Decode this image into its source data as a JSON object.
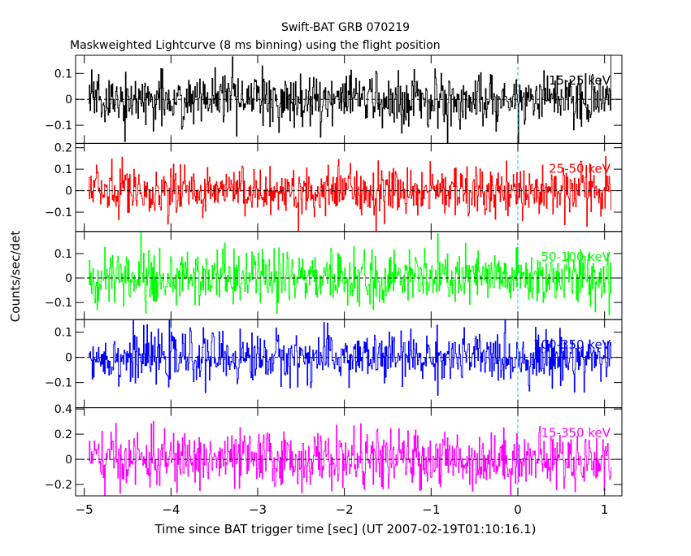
{
  "chart_data": {
    "type": "line",
    "title": "Swift-BAT GRB 070219",
    "subtitle": "Maskweighted Lightcurve (8 ms binning) using the flight position",
    "xlabel": "Time since BAT trigger time [sec] (UT 2007-02-19T01:10:16.1)",
    "ylabel": "Counts/sec/det",
    "xlim": [
      -5.1,
      1.2
    ],
    "x_ticks": [
      -5,
      -4,
      -3,
      -2,
      -1,
      0,
      1
    ],
    "x_tick_labels": [
      "−5",
      "−4",
      "−3",
      "−2",
      "−1",
      "0",
      "1"
    ],
    "trigger_marker_x": 0,
    "data_x_range": [
      -4.95,
      1.08
    ],
    "bin_width_s": 0.008,
    "panels": [
      {
        "band": "15-25 keV",
        "color": "#000000",
        "ylim": [
          -0.17,
          0.17
        ],
        "y_ticks": [
          -0.1,
          0,
          0.1
        ],
        "y_tick_labels": [
          "−0.1",
          "0",
          "0.1"
        ],
        "noise_sigma": 0.05
      },
      {
        "band": "25-50 keV",
        "color": "#ff0000",
        "ylim": [
          -0.19,
          0.22
        ],
        "y_ticks": [
          -0.1,
          0,
          0.1,
          0.2
        ],
        "y_tick_labels": [
          "−0.1",
          "0",
          "0.1",
          "0.2"
        ],
        "noise_sigma": 0.06
      },
      {
        "band": "50-100 keV",
        "color": "#00ff00",
        "ylim": [
          -0.17,
          0.19
        ],
        "y_ticks": [
          -0.1,
          0,
          0.1
        ],
        "y_tick_labels": [
          "−0.1",
          "0",
          "0.1"
        ],
        "noise_sigma": 0.055
      },
      {
        "band": "100-350 keV",
        "color": "#0000ff",
        "ylim": [
          -0.2,
          0.15
        ],
        "y_ticks": [
          -0.1,
          0,
          0.1
        ],
        "y_tick_labels": [
          "−0.1",
          "0",
          "0.1"
        ],
        "noise_sigma": 0.05
      },
      {
        "band": "15-350 keV",
        "color": "#ff00ff",
        "ylim": [
          -0.29,
          0.41
        ],
        "y_ticks": [
          -0.2,
          0,
          0.2,
          0.4
        ],
        "y_tick_labels": [
          "−0.2",
          "0",
          "0.2",
          "0.4"
        ],
        "noise_sigma": 0.11
      }
    ]
  }
}
